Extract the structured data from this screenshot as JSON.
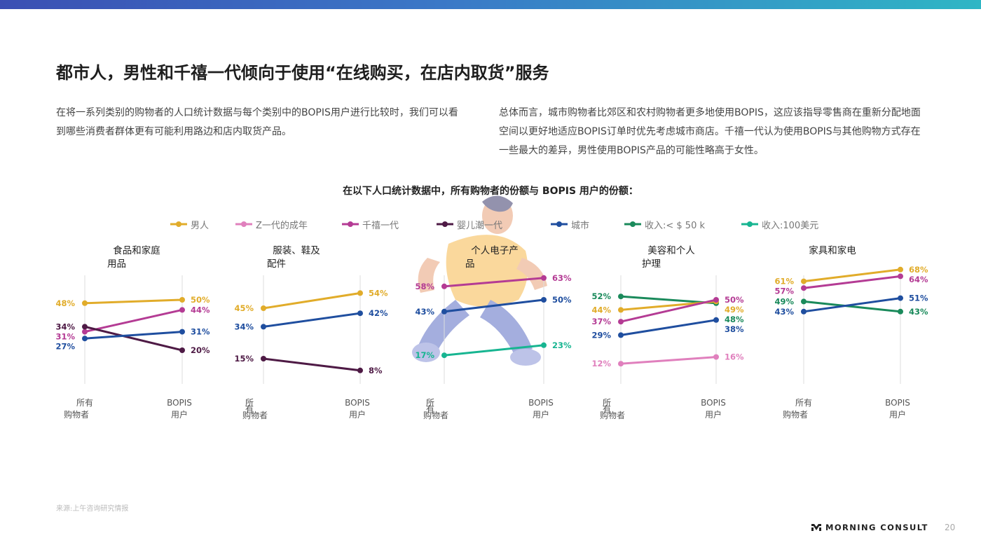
{
  "header": {
    "title": "都市人，男性和千禧一代倾向于使用“在线购买，在店内取货”服务",
    "para_left": "在将一系列类别的购物者的人口统计数据与每个类别中的BOPIS用户进行比较时，我们可以看到哪些消费者群体更有可能利用路边和店内取货产品。",
    "para_right": "总体而言，城市购物者比郊区和农村购物者更多地使用BOPIS，这应该指导零售商在重新分配地面空间以更好地适应BOPIS订单时优先考虑城市商店。千禧一代认为使用BOPIS与其他购物方式存在一些最大的差异，男性使用BOPIS产品的可能性略高于女性。",
    "subtitle": "在以下人口统计数据中，所有购物者的份额与 BOPIS 用户的份额："
  },
  "legend": [
    {
      "name": "男人",
      "color": "#e1ac2a"
    },
    {
      "name": "Z一代的成年",
      "color": "#e080bd"
    },
    {
      "name": "千禧一代",
      "color": "#b43b94"
    },
    {
      "name": "婴儿潮一代",
      "color": "#4e1a45"
    },
    {
      "name": "城市",
      "color": "#1f4e9f"
    },
    {
      "name": "收入:< $ 50 k",
      "color": "#1a8a5b"
    },
    {
      "name": "收入:100美元",
      "color": "#17b591"
    }
  ],
  "chart_data": [
    {
      "type": "line",
      "title": "食品和家庭用品",
      "categories": [
        "所有 购物者",
        "BOPIS 用户"
      ],
      "x_label_lines": [
        [
          "所有",
          "购物者"
        ],
        [
          "BOPIS",
          "用户"
        ]
      ],
      "ylim": [
        0,
        100
      ],
      "series": [
        {
          "name": "男人",
          "values": [
            48,
            50
          ]
        },
        {
          "name": "千禧一代",
          "values": [
            31,
            44
          ]
        },
        {
          "name": "婴儿潮一代",
          "values": [
            34,
            20
          ]
        },
        {
          "name": "城市",
          "values": [
            27,
            31
          ]
        }
      ]
    },
    {
      "type": "line",
      "title": "服装、鞋及配件",
      "categories": [
        "所有 购物者",
        "BOPIS 用户"
      ],
      "x_label_lines": [
        [
          "所",
          "有",
          "购物者"
        ],
        [
          "BOPIS",
          "用户"
        ]
      ],
      "ylim": [
        0,
        100
      ],
      "series": [
        {
          "name": "男人",
          "values": [
            45,
            54
          ]
        },
        {
          "name": "城市",
          "values": [
            34,
            42
          ]
        },
        {
          "name": "婴儿潮一代",
          "values": [
            15,
            8
          ]
        }
      ]
    },
    {
      "type": "line",
      "title": "个人电子产品",
      "categories": [
        "所有 购物者",
        "BOPIS 用户"
      ],
      "x_label_lines": [
        [
          "所",
          "有",
          "购物者"
        ],
        [
          "BOPIS",
          "用户"
        ]
      ],
      "ylim": [
        0,
        100
      ],
      "series": [
        {
          "name": "千禧一代",
          "values": [
            58,
            63
          ]
        },
        {
          "name": "城市",
          "values": [
            43,
            50
          ]
        },
        {
          "name": "收入:100美元",
          "values": [
            17,
            23
          ]
        }
      ]
    },
    {
      "type": "line",
      "title": "美容和个人护理",
      "categories": [
        "所有 购物者",
        "BOPIS 用户"
      ],
      "x_label_lines": [
        [
          "所",
          "有",
          "购物者"
        ],
        [
          "BOPIS",
          "用户"
        ]
      ],
      "ylim": [
        0,
        100
      ],
      "series": [
        {
          "name": "收入:< $ 50 k",
          "values": [
            52,
            48
          ]
        },
        {
          "name": "男人",
          "values": [
            44,
            49
          ]
        },
        {
          "name": "千禧一代",
          "values": [
            37,
            50
          ]
        },
        {
          "name": "城市",
          "values": [
            29,
            38
          ]
        },
        {
          "name": "Z一代的成年",
          "values": [
            12,
            16
          ]
        }
      ]
    },
    {
      "type": "line",
      "title": "家具和家电",
      "categories": [
        "所有 购物者",
        "BOPIS 用户"
      ],
      "x_label_lines": [
        [
          "所有",
          "购物者"
        ],
        [
          "BOPIS",
          "用户"
        ]
      ],
      "ylim": [
        0,
        100
      ],
      "series": [
        {
          "name": "男人",
          "values": [
            61,
            68
          ]
        },
        {
          "name": "千禧一代",
          "values": [
            57,
            64
          ]
        },
        {
          "name": "收入:< $ 50 k",
          "values": [
            49,
            43
          ]
        },
        {
          "name": "城市",
          "values": [
            43,
            51
          ]
        }
      ]
    }
  ],
  "footer": {
    "source": "来源:上午咨询研究情报",
    "logo_text": "MORNING CONSULT",
    "page_number": "20"
  }
}
